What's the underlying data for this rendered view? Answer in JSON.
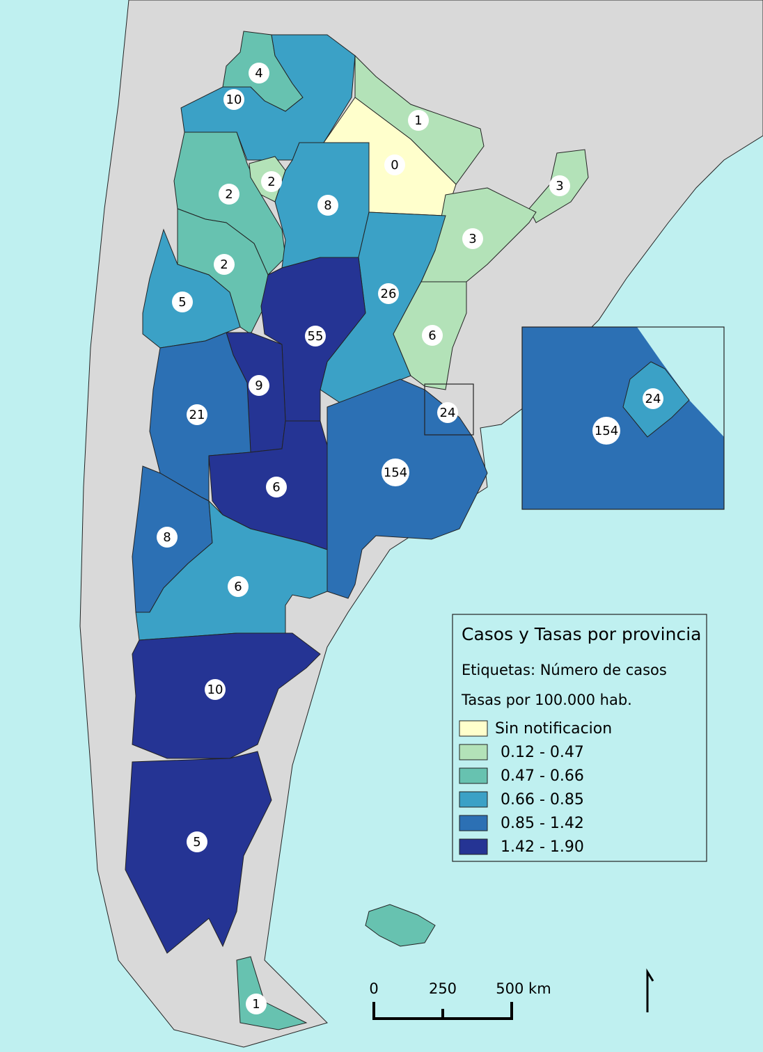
{
  "legend": {
    "title": "Casos y Tasas por provincia",
    "subtitle": "Etiquetas: Número de casos",
    "rate_title": "Tasas por 100.000 hab.",
    "items": [
      {
        "label": "Sin notificacion",
        "color": "#ffffcc"
      },
      {
        "label": "0.12 - 0.47",
        "color": "#b3e2b8"
      },
      {
        "label": "0.47 - 0.66",
        "color": "#67c2b0"
      },
      {
        "label": "0.66 - 0.85",
        "color": "#3ba1c6"
      },
      {
        "label": "0.85 - 1.42",
        "color": "#2c70b4"
      },
      {
        "label": "1.42 - 1.90",
        "color": "#253494"
      }
    ]
  },
  "labels": [
    4,
    10,
    1,
    0,
    2,
    2,
    8,
    3,
    3,
    2,
    5,
    26,
    6,
    55,
    9,
    21,
    24,
    154,
    6,
    8,
    6,
    10,
    5,
    1
  ],
  "inset_labels": [
    24,
    154
  ],
  "scale_bar": {
    "labels": [
      "0",
      "250",
      "500 km"
    ]
  }
}
